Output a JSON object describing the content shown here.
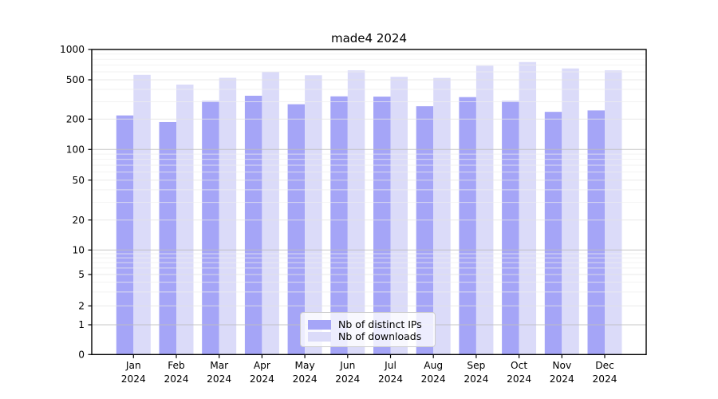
{
  "chart_data": {
    "type": "bar",
    "title": "made4 2024",
    "categories": [
      "Jan",
      "Feb",
      "Mar",
      "Apr",
      "May",
      "Jun",
      "Jul",
      "Aug",
      "Sep",
      "Oct",
      "Nov",
      "Dec"
    ],
    "year": "2024",
    "series": [
      {
        "name": "Nb of distinct IPs",
        "color": "#a5a5f7",
        "values": [
          218,
          187,
          305,
          345,
          283,
          340,
          338,
          270,
          334,
          305,
          237,
          245
        ]
      },
      {
        "name": "Nb of downloads",
        "color": "#dbdbf9",
        "values": [
          560,
          447,
          523,
          600,
          555,
          620,
          535,
          522,
          690,
          750,
          648,
          620
        ]
      }
    ],
    "xlabel": "",
    "ylabel": "",
    "yscale": "log",
    "ylim": [
      0,
      1000
    ],
    "yticks": [
      0,
      1,
      2,
      5,
      10,
      20,
      50,
      100,
      200,
      500,
      1000
    ],
    "grid": true,
    "legend_position": "lower center",
    "colors": {
      "major_grid": "#bdbdbd",
      "minor_grid": "#ededed",
      "spine": "#000000",
      "text": "#000000",
      "background": "#ffffff"
    }
  }
}
